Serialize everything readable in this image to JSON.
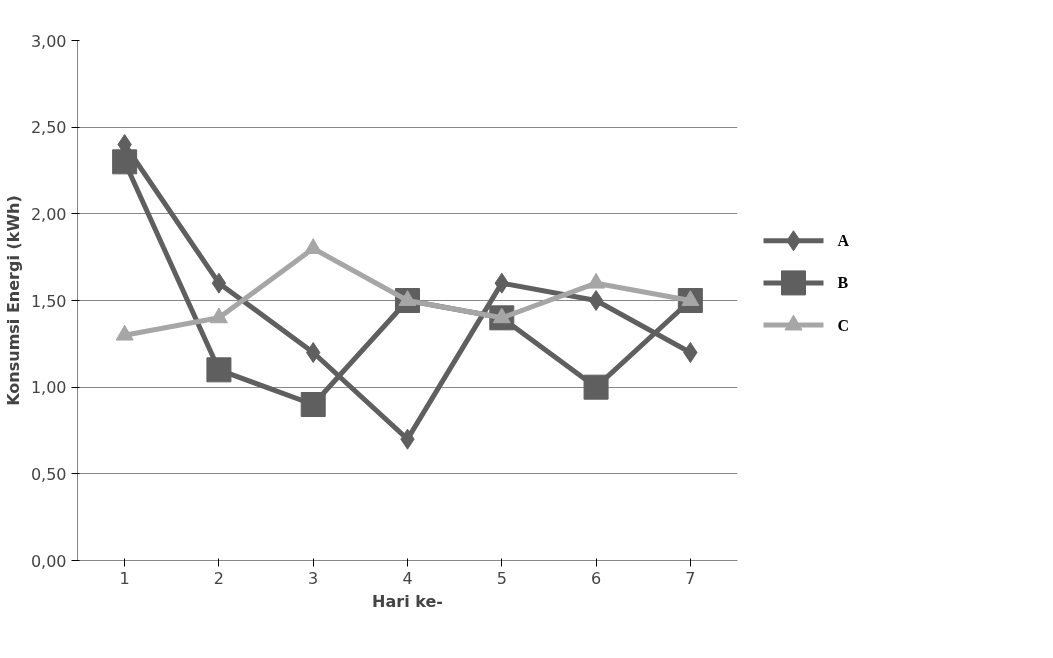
{
  "chart_data": {
    "type": "line",
    "xlabel": "Hari ke-",
    "ylabel": "Konsumsi Energi (kWh)",
    "categories": [
      "1",
      "2",
      "3",
      "4",
      "5",
      "6",
      "7"
    ],
    "series": [
      {
        "name": "A",
        "color": "#5f5f5f",
        "marker": "diamond",
        "values": [
          2.4,
          1.6,
          1.2,
          0.7,
          1.6,
          1.5,
          1.2
        ]
      },
      {
        "name": "B",
        "color": "#5f5f5f",
        "marker": "square",
        "values": [
          2.3,
          1.1,
          0.9,
          1.5,
          1.4,
          1.0,
          1.5
        ]
      },
      {
        "name": "C",
        "color": "#a6a6a6",
        "marker": "triangle",
        "values": [
          1.3,
          1.4,
          1.8,
          1.5,
          1.4,
          1.6,
          1.5
        ]
      }
    ],
    "ylim": [
      0,
      3
    ],
    "yticks": [
      {
        "value": 0,
        "label": "0,00"
      },
      {
        "value": 0.5,
        "label": "0,50"
      },
      {
        "value": 1,
        "label": "1,00"
      },
      {
        "value": 1.5,
        "label": "1,50"
      },
      {
        "value": 2,
        "label": "2,00"
      },
      {
        "value": 2.5,
        "label": "2,50"
      },
      {
        "value": 3,
        "label": "3,00"
      }
    ],
    "grid": "y",
    "legend": "right",
    "line_style": "solid"
  }
}
